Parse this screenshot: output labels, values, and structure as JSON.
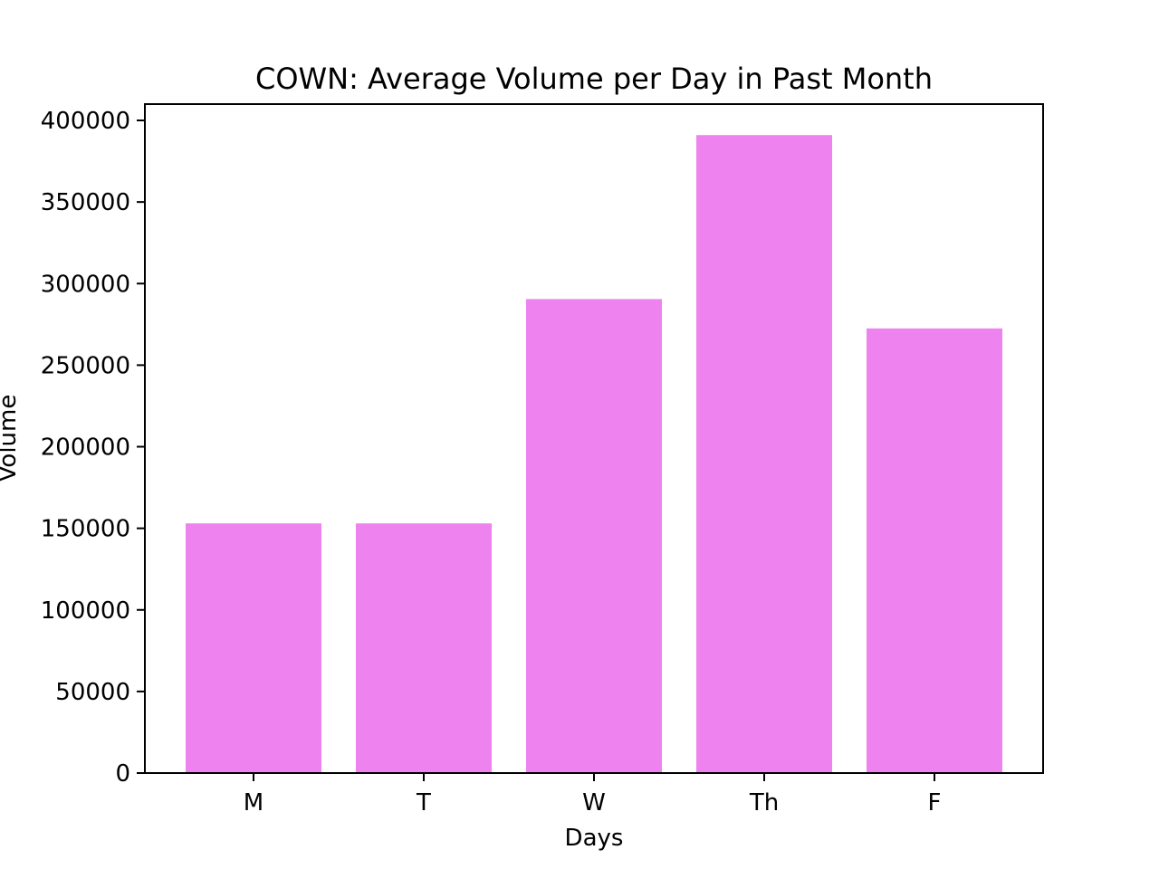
{
  "chart_data": {
    "type": "bar",
    "title": "COWN: Average Volume per Day in Past Month",
    "xlabel": "Days",
    "ylabel": "Volume",
    "categories": [
      "M",
      "T",
      "W",
      "Th",
      "F"
    ],
    "values": [
      153000,
      153000,
      290500,
      391000,
      272500
    ],
    "ylim": [
      0,
      410000
    ],
    "yticks": [
      0,
      50000,
      100000,
      150000,
      200000,
      250000,
      300000,
      350000,
      400000
    ],
    "bar_color": "#ee82ee",
    "grid": false,
    "legend": "none"
  }
}
